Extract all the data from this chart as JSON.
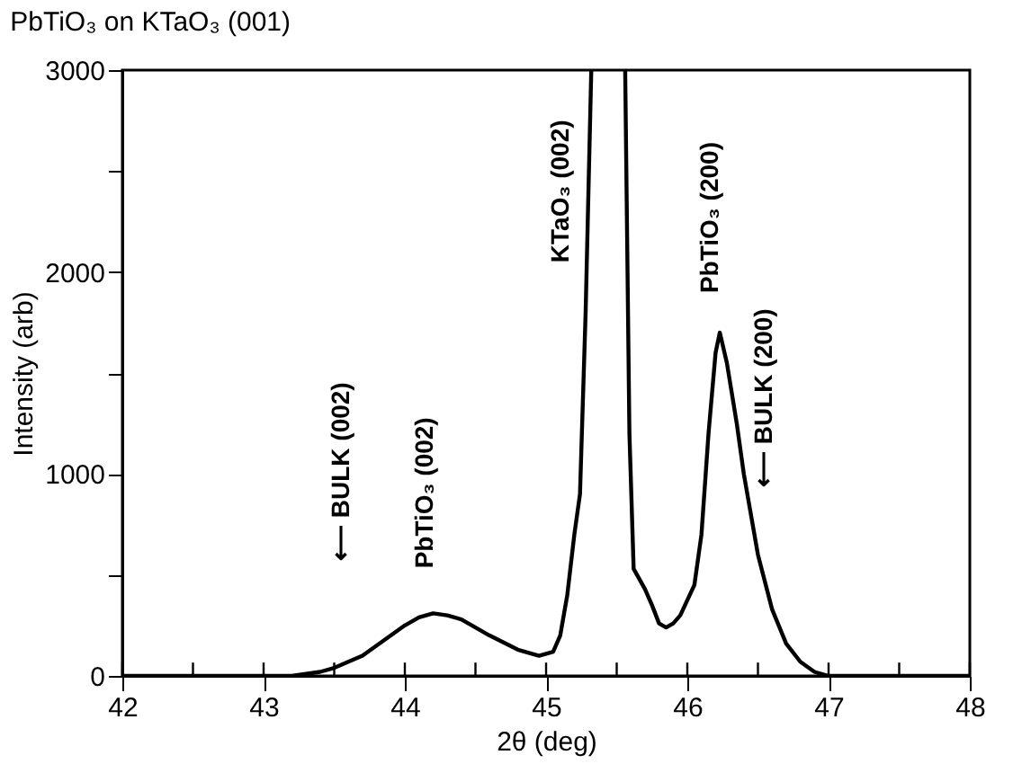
{
  "chart_data": {
    "type": "line",
    "title": "PbTiO₃ on KTaO₃ (001)",
    "xlabel": "2θ (deg)",
    "ylabel": "Intensity (arb)",
    "x": [
      42,
      43.0,
      43.2,
      43.4,
      43.5,
      43.7,
      43.9,
      44.0,
      44.1,
      44.2,
      44.3,
      44.4,
      44.6,
      44.8,
      44.95,
      45.05,
      45.1,
      45.15,
      45.2,
      45.24,
      45.28,
      45.32,
      45.45,
      45.56,
      45.59,
      45.62,
      45.7,
      45.75,
      45.8,
      45.85,
      45.9,
      45.95,
      46.05,
      46.1,
      46.15,
      46.2,
      46.23,
      46.28,
      46.35,
      46.4,
      46.5,
      46.6,
      46.7,
      46.8,
      46.9,
      47.0,
      48
    ],
    "series": [
      {
        "color": "#000000",
        "values": [
          0,
          0,
          0,
          20,
          40,
          100,
          200,
          250,
          290,
          310,
          300,
          280,
          200,
          130,
          100,
          120,
          200,
          400,
          700,
          900,
          1800,
          3000,
          null,
          3000,
          1200,
          530,
          430,
          350,
          260,
          240,
          260,
          300,
          450,
          700,
          1200,
          1600,
          1700,
          1550,
          1250,
          1000,
          600,
          330,
          160,
          70,
          20,
          0,
          0
        ]
      }
    ],
    "xlim": [
      42,
      48
    ],
    "ylim": [
      0,
      3000
    ],
    "xticks": [
      42,
      {
        "value": 42.5,
        "label": null
      },
      43,
      {
        "value": 43.5,
        "label": null
      },
      44,
      {
        "value": 44.5,
        "label": null
      },
      45,
      {
        "value": 45.5,
        "label": null
      },
      46,
      {
        "value": 46.5,
        "label": null
      },
      47,
      {
        "value": 47.5,
        "label": null
      },
      48
    ],
    "yticks": [
      0,
      {
        "value": 500,
        "label": null
      },
      1000,
      {
        "value": 1500,
        "label": null
      },
      2000,
      {
        "value": 2500,
        "label": null
      },
      3000
    ],
    "grid": false,
    "marker": "none",
    "line_style": "solid",
    "annotations": [
      "⟵ BULK (002)",
      {
        "text": "PbTiO₃ (002)",
        "x": 44.2,
        "y": 310
      },
      {
        "text": "KTaO₃ (002)",
        "x": 45.31,
        "y": 2400
      },
      {
        "text": "PbTiO₃ (200)",
        "x": 46.23,
        "y": 1700
      },
      "⟵ BULK (200)"
    ]
  }
}
